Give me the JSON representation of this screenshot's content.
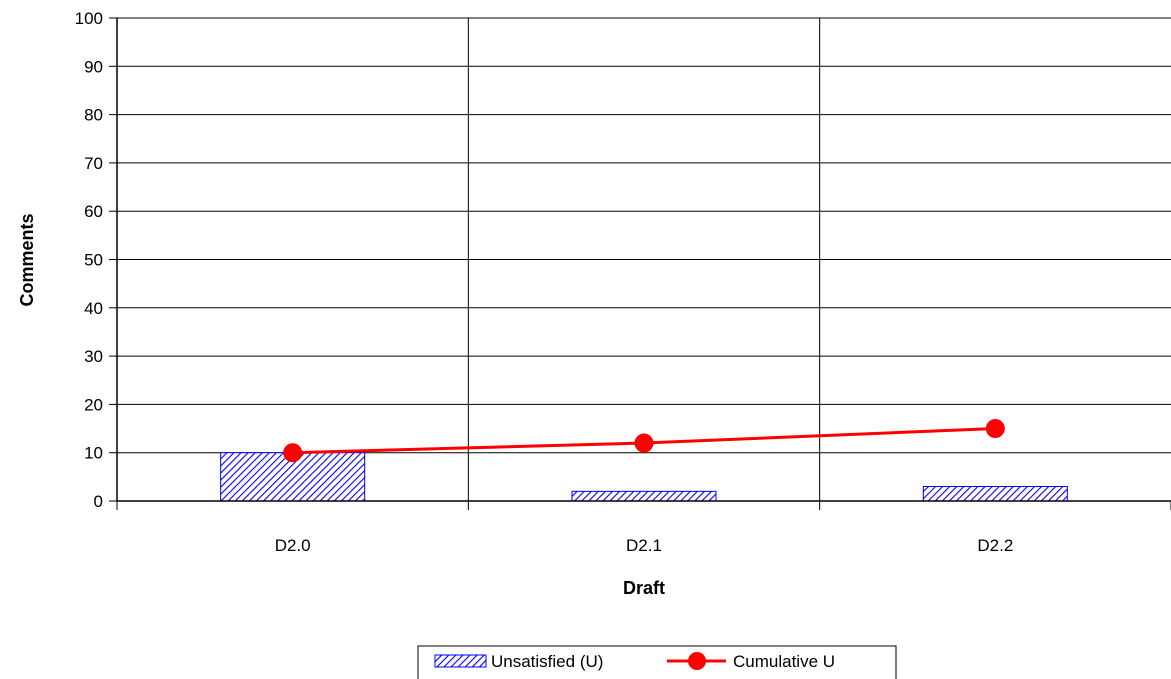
{
  "chart_data": {
    "type": "bar",
    "categories": [
      "D2.0",
      "D2.1",
      "D2.2"
    ],
    "series": [
      {
        "name": "Unsatisfied (U)",
        "kind": "bar",
        "values": [
          10,
          2,
          3
        ],
        "color": "#0000ff",
        "fill": "hatched"
      },
      {
        "name": "Cumulative U",
        "kind": "line",
        "values": [
          10,
          12,
          15
        ],
        "color": "#ff0000",
        "marker": "circle"
      }
    ],
    "title": "",
    "xlabel": "Draft",
    "ylabel": "Comments",
    "ylim": [
      0,
      100
    ],
    "yticks": [
      0,
      10,
      20,
      30,
      40,
      50,
      60,
      70,
      80,
      90,
      100
    ],
    "grid": true,
    "legend": "bottom-center"
  }
}
